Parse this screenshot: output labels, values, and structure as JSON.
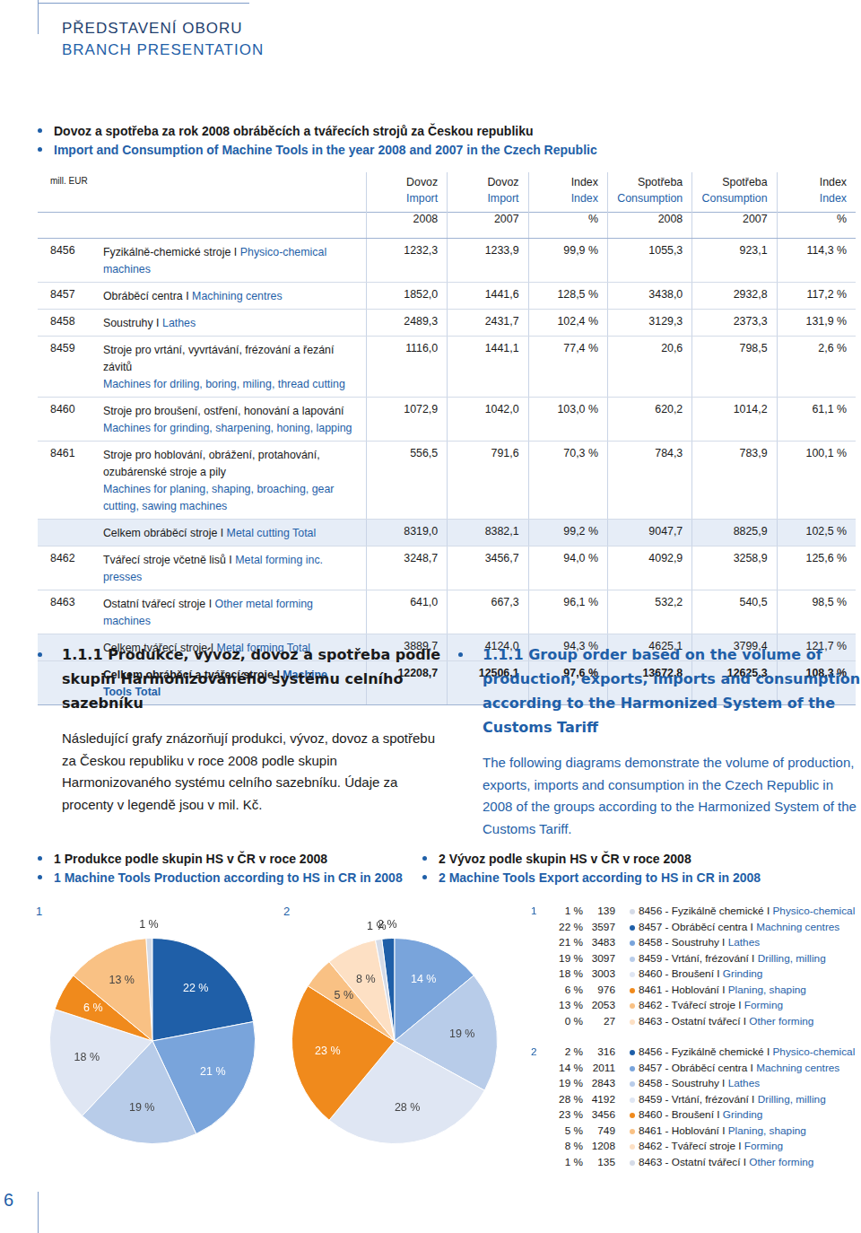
{
  "header": {
    "title": "PŘEDSTAVENÍ OBORU",
    "title_en": "BRANCH PRESENTATION"
  },
  "table": {
    "title": [
      "Dovoz a spotřeba za rok 2008 obráběcích a tvářecích strojů za Českou republiku",
      "Import and Consumption of Machine Tools in the year 2008 and 2007 in the Czech Republic"
    ],
    "unit": "mill. EUR",
    "columns": [
      [
        "Dovoz",
        "Import",
        "2008"
      ],
      [
        "Dovoz",
        "Import",
        "2007"
      ],
      [
        "Index",
        "Index",
        "%"
      ],
      [
        "Spotřeba",
        "Consumption",
        "2008"
      ],
      [
        "Spotřeba",
        "Consumption",
        "2007"
      ],
      [
        "Index",
        "Index",
        "%"
      ]
    ],
    "rows": [
      {
        "code": "8456",
        "name": [
          "Fyzikálně-chemické stroje I ",
          "Physico-chemical machines"
        ],
        "cells": [
          "1232,3",
          "1233,9",
          "99,9 %",
          "1055,3",
          "923,1",
          "114,3 %"
        ]
      },
      {
        "code": "8457",
        "name": [
          "Obráběcí centra I ",
          "Machining centres"
        ],
        "cells": [
          "1852,0",
          "1441,6",
          "128,5 %",
          "3438,0",
          "2932,8",
          "117,2 %"
        ]
      },
      {
        "code": "8458",
        "name": [
          "Soustruhy I ",
          "Lathes"
        ],
        "cells": [
          "2489,3",
          "2431,7",
          "102,4 %",
          "3129,3",
          "2373,3",
          "131,9 %"
        ]
      },
      {
        "code": "8459",
        "name": [
          "Stroje pro vrtání, vyvrtávání, frézování a řezání závitů",
          "Machines for driling, boring, miling, thread cutting"
        ],
        "cells": [
          "1116,0",
          "1441,1",
          "77,4 %",
          "20,6",
          "798,5",
          "2,6 %"
        ]
      },
      {
        "code": "8460",
        "name": [
          "Stroje pro broušení, ostření, honování a lapování",
          "Machines for grinding, sharpening, honing, lapping"
        ],
        "cells": [
          "1072,9",
          "1042,0",
          "103,0 %",
          "620,2",
          "1014,2",
          "61,1 %"
        ]
      },
      {
        "code": "8461",
        "name": [
          "Stroje pro hoblování, obrážení, protahování, ozubárenské stroje a pily",
          "Machines for planing, shaping, broaching, gear cutting, sawing machines"
        ],
        "cells": [
          "556,5",
          "791,6",
          "70,3 %",
          "784,3",
          "783,9",
          "100,1 %"
        ]
      },
      {
        "kind": "total",
        "name": [
          "Celkem obráběcí stroje I ",
          "Metal cutting Total"
        ],
        "cells": [
          "8319,0",
          "8382,1",
          "99,2 %",
          "9047,7",
          "8825,9",
          "102,5 %"
        ]
      },
      {
        "code": "8462",
        "name": [
          "Tvářecí stroje včetně lisů I ",
          "Metal forming inc. presses"
        ],
        "cells": [
          "3248,7",
          "3456,7",
          "94,0 %",
          "4092,9",
          "3258,9",
          "125,6 %"
        ]
      },
      {
        "code": "8463",
        "name": [
          "Ostatní tvářecí stroje I ",
          "Other metal forming machines"
        ],
        "cells": [
          "641,0",
          "667,3",
          "96,1 %",
          "532,2",
          "540,5",
          "98,5 %"
        ]
      },
      {
        "kind": "total",
        "name": [
          "Celkem tvářecí stroje I ",
          "Metal forming Total"
        ],
        "cells": [
          "3889,7",
          "4124,0",
          "94,3 %",
          "4625,1",
          "3799,4",
          "121,7 %"
        ]
      },
      {
        "kind": "grand_total",
        "name": [
          "Celkem obráběcí a tvářecí stroje I ",
          "Machine Tools Total"
        ],
        "cells": [
          "12208,7",
          "12506,1",
          "97,6 %",
          "13672,8",
          "12625,3",
          "108,3 %"
        ]
      }
    ]
  },
  "section": {
    "cz": {
      "heading": "1.1.1 Produkce, vývoz, dovoz a spotřeba podle skupin Harmonizovaného systému celního sazebníku",
      "text": "Následující grafy znázorňují produkci, vývoz, dovoz a spotřebu za Českou republiku v roce 2008 podle skupin Harmonizovaného systému celního sazebníku. Údaje za procenty v legendě jsou v mil. Kč."
    },
    "en": {
      "heading": "1.1.1 Group order based on the volume of production, exports, imports and consumption according to the Harmonized System of the Customs Tariff",
      "text": "The following diagrams demonstrate the volume of production, exports, imports and consumption in the Czech Republic in 2008 of the groups according to the Harmonized System of the Customs Tariff."
    }
  },
  "chart_data": [
    {
      "type": "pie",
      "number": "1",
      "title": [
        "1 Produkce podle skupin HS v ČR v roce 2008",
        "1 Machine Tools Production according to HS in CR in 2008"
      ],
      "categories": [
        [
          "8456 - Fyzikálně chemické I ",
          "Physico-chemical"
        ],
        [
          "8457 - Obráběcí centra I ",
          "Machning centres"
        ],
        [
          "8458 - Soustruhy I ",
          "Lathes"
        ],
        [
          "8459 - Vrtání, frézování I ",
          "Drilling, milling"
        ],
        [
          "8460 - Broušení I ",
          "Grinding"
        ],
        [
          "8461 - Hoblování I ",
          "Planing, shaping"
        ],
        [
          "8462 - Tvářecí stroje I ",
          "Forming"
        ],
        [
          "8463 - Ostatní tvářecí I ",
          "Other forming"
        ]
      ],
      "values": [
        1,
        22,
        21,
        19,
        18,
        6,
        13,
        0
      ],
      "value_labels": [
        "1 %",
        "22 %",
        "21 %",
        "19 %",
        "18 %",
        "6 %",
        "13 %",
        "0 %"
      ],
      "amounts": [
        139,
        3597,
        3483,
        3097,
        3003,
        976,
        2053,
        27
      ],
      "colors": [
        "#d5dbe7",
        "#1f5fa8",
        "#79a4db",
        "#b8cce9",
        "#dfe6f3",
        "#f08a1c",
        "#f9c184",
        "#fde0c4"
      ],
      "data_labels": true
    },
    {
      "type": "pie",
      "number": "2",
      "title": [
        "2 Vývoz podle skupin HS v ČR v roce 2008",
        "2 Machine Tools Export according to HS in CR in 2008"
      ],
      "categories": [
        [
          "8456 - Fyzikálně chemické I ",
          "Physico-chemical"
        ],
        [
          "8457 - Obráběcí centra I ",
          "Machning centres"
        ],
        [
          "8458 - Soustruhy I ",
          "Lathes"
        ],
        [
          "8459 - Vrtání, frézování I ",
          "Drilling, milling"
        ],
        [
          "8460 - Broušení I ",
          "Grinding"
        ],
        [
          "8461 - Hoblování I ",
          "Planing, shaping"
        ],
        [
          "8462 - Tvářecí stroje I ",
          "Forming"
        ],
        [
          "8463 - Ostatní tvářecí I ",
          "Other forming"
        ]
      ],
      "values": [
        2,
        14,
        19,
        28,
        23,
        5,
        8,
        1
      ],
      "value_labels": [
        "2 %",
        "14 %",
        "19 %",
        "28 %",
        "23 %",
        "5 %",
        "8 %",
        "1 %"
      ],
      "amounts": [
        316,
        2011,
        2843,
        4192,
        3456,
        749,
        1208,
        135
      ],
      "colors": [
        "#1f5fa8",
        "#79a4db",
        "#b8cce9",
        "#dfe6f3",
        "#f08a1c",
        "#f9c184",
        "#fde0c4",
        "#d5dbe7"
      ],
      "data_labels": true
    }
  ],
  "page_number": "6"
}
